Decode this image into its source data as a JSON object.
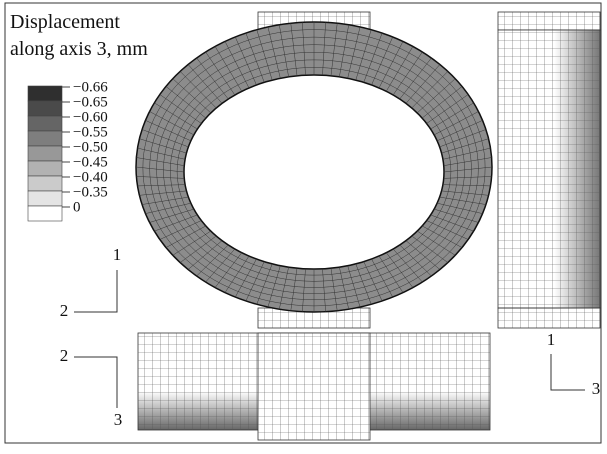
{
  "title": [
    "Displacement",
    "along axis 3, mm"
  ],
  "legend": [
    {
      "label": "−0.66",
      "color": "#2f2f2f"
    },
    {
      "label": "−0.65",
      "color": "#4a4a4a"
    },
    {
      "label": "−0.60",
      "color": "#656565"
    },
    {
      "label": "−0.55",
      "color": "#7e7e7e"
    },
    {
      "label": "−0.50",
      "color": "#989898"
    },
    {
      "label": "−0.45",
      "color": "#b2b2b2"
    },
    {
      "label": "−0.40",
      "color": "#cbcbcb"
    },
    {
      "label": "−0.35",
      "color": "#e4e4e4"
    },
    {
      "label": "0",
      "color": "#ffffff"
    }
  ],
  "axes": {
    "top_view": [
      "1",
      "2"
    ],
    "front_view": [
      "2",
      "3"
    ],
    "side_view": [
      "1",
      "3"
    ]
  }
}
